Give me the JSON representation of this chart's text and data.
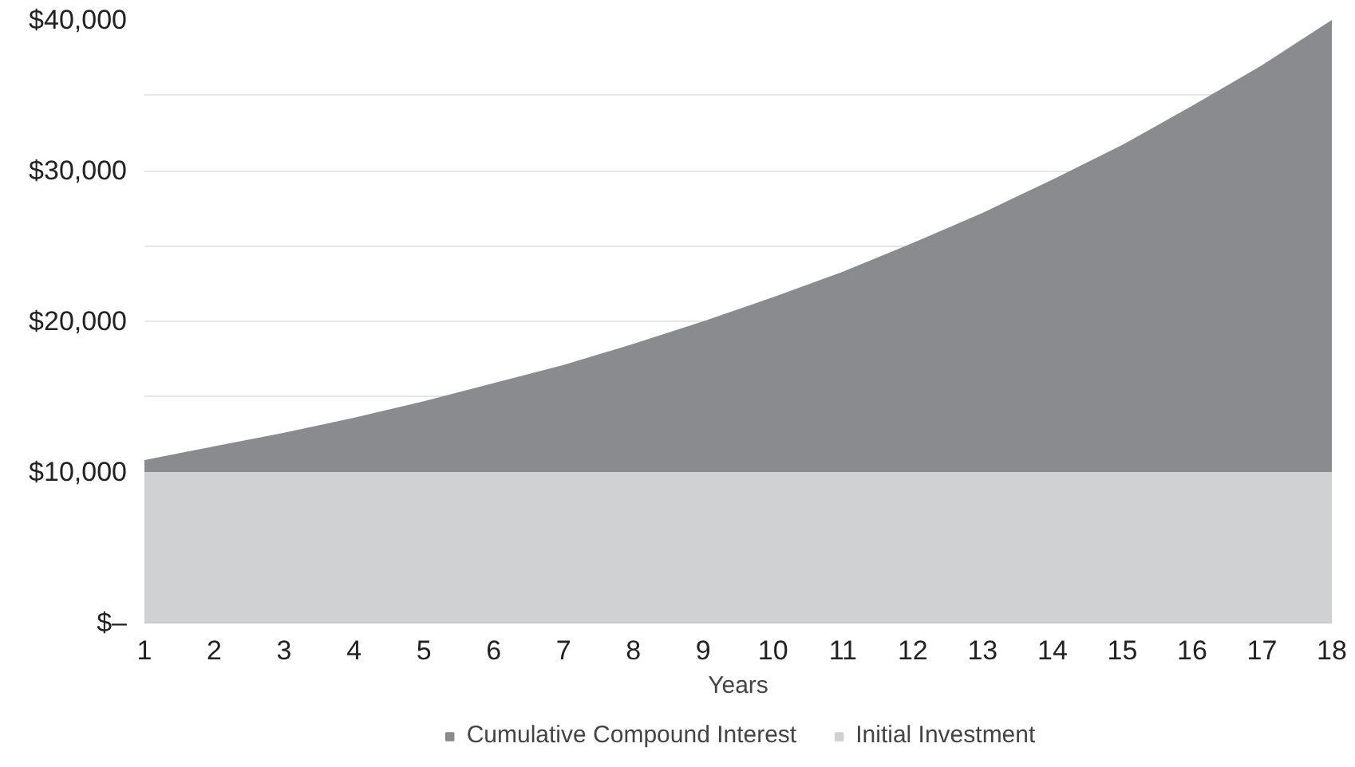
{
  "chart_data": {
    "type": "area",
    "stacked": true,
    "xlabel": "Years",
    "x": [
      1,
      2,
      3,
      4,
      5,
      6,
      7,
      8,
      9,
      10,
      11,
      12,
      13,
      14,
      15,
      16,
      17,
      18
    ],
    "series": [
      {
        "name": "Initial Investment",
        "color": "#d0d1d3",
        "values": [
          10000,
          10000,
          10000,
          10000,
          10000,
          10000,
          10000,
          10000,
          10000,
          10000,
          10000,
          10000,
          10000,
          10000,
          10000,
          10000,
          10000,
          10000
        ]
      },
      {
        "name": "Cumulative Compound Interest",
        "color": "#8a8b8e",
        "values": [
          800,
          1700,
          2600,
          3600,
          4700,
          5900,
          7100,
          8500,
          10000,
          11600,
          13300,
          15200,
          17200,
          19400,
          21700,
          24300,
          27000,
          30000
        ]
      }
    ],
    "xlim": [
      1,
      18
    ],
    "xticks": [
      1,
      2,
      3,
      4,
      5,
      6,
      7,
      8,
      9,
      10,
      11,
      12,
      13,
      14,
      15,
      16,
      17,
      18
    ],
    "ylim": [
      0,
      40000
    ],
    "yticks": [
      {
        "value": 0,
        "label": "$–"
      },
      {
        "value": 5000,
        "label": null
      },
      {
        "value": 10000,
        "label": "$10,000"
      },
      {
        "value": 15000,
        "label": null
      },
      {
        "value": 20000,
        "label": "$20,000"
      },
      {
        "value": 25000,
        "label": null
      },
      {
        "value": 30000,
        "label": "$30,000"
      },
      {
        "value": 35000,
        "label": null
      },
      {
        "value": 40000,
        "label": "$40,000"
      }
    ],
    "grid": "y",
    "legend": "bottom"
  }
}
